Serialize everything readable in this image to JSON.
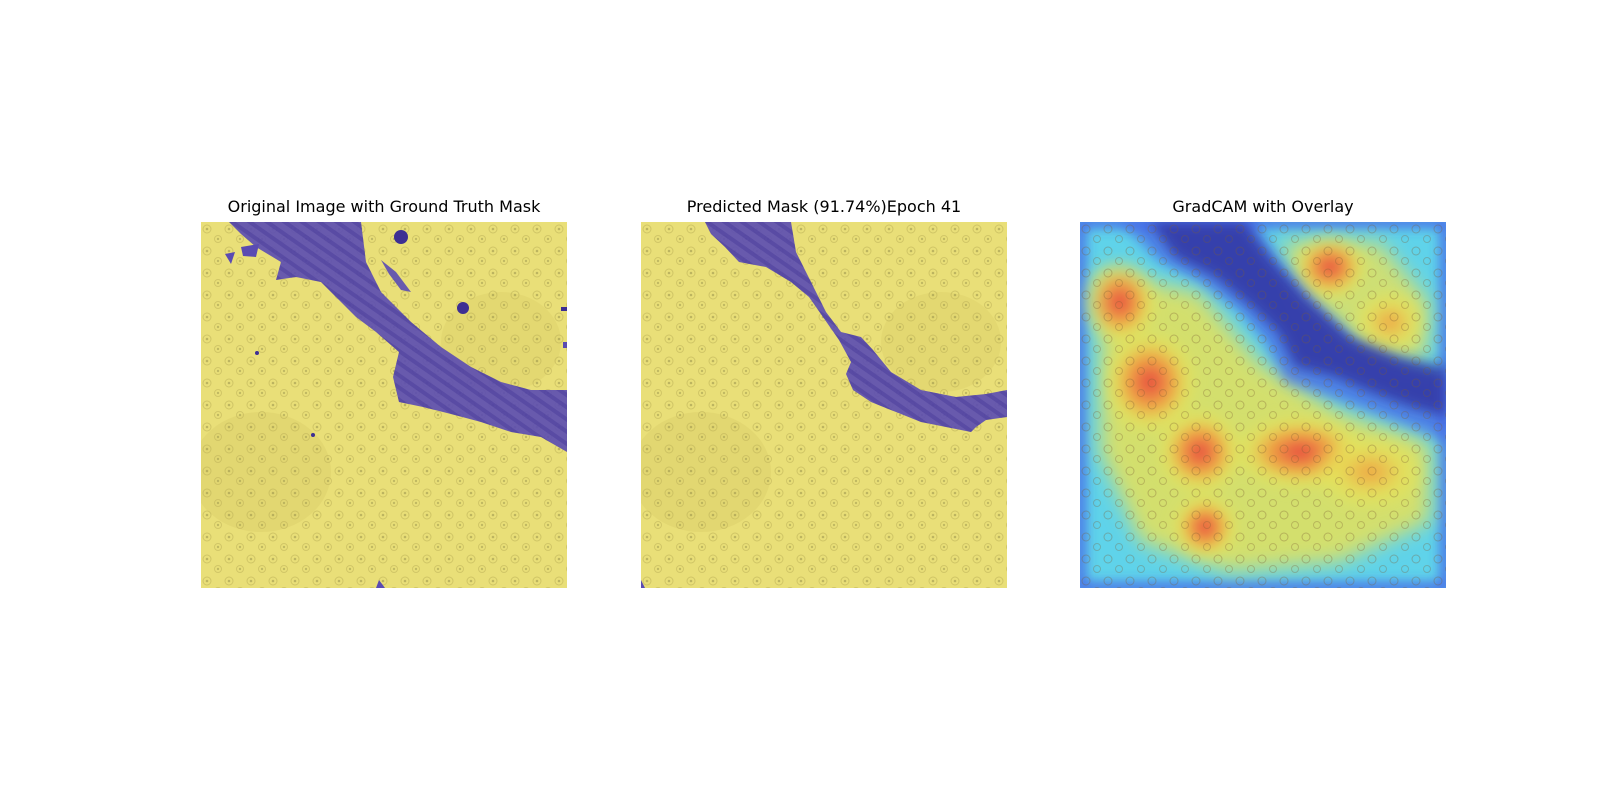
{
  "figure": {
    "panels": [
      {
        "title": "Original Image with Ground Truth Mask"
      },
      {
        "title": "Predicted Mask (91.74%)Epoch 41"
      },
      {
        "title": "GradCAM with Overlay"
      }
    ]
  },
  "colors": {
    "tissue_yellow": "#e9df78",
    "tissue_shade": "#c8bd62",
    "mask_purple": "#5a4bb2",
    "mask_dark": "#3d2f93",
    "heat_red": "#e8383f",
    "heat_orange": "#f39a3c",
    "heat_yellow": "#e8e257",
    "heat_cyan": "#5fd3ea",
    "heat_blue": "#3f45e6",
    "heat_navy": "#2d2a99"
  }
}
